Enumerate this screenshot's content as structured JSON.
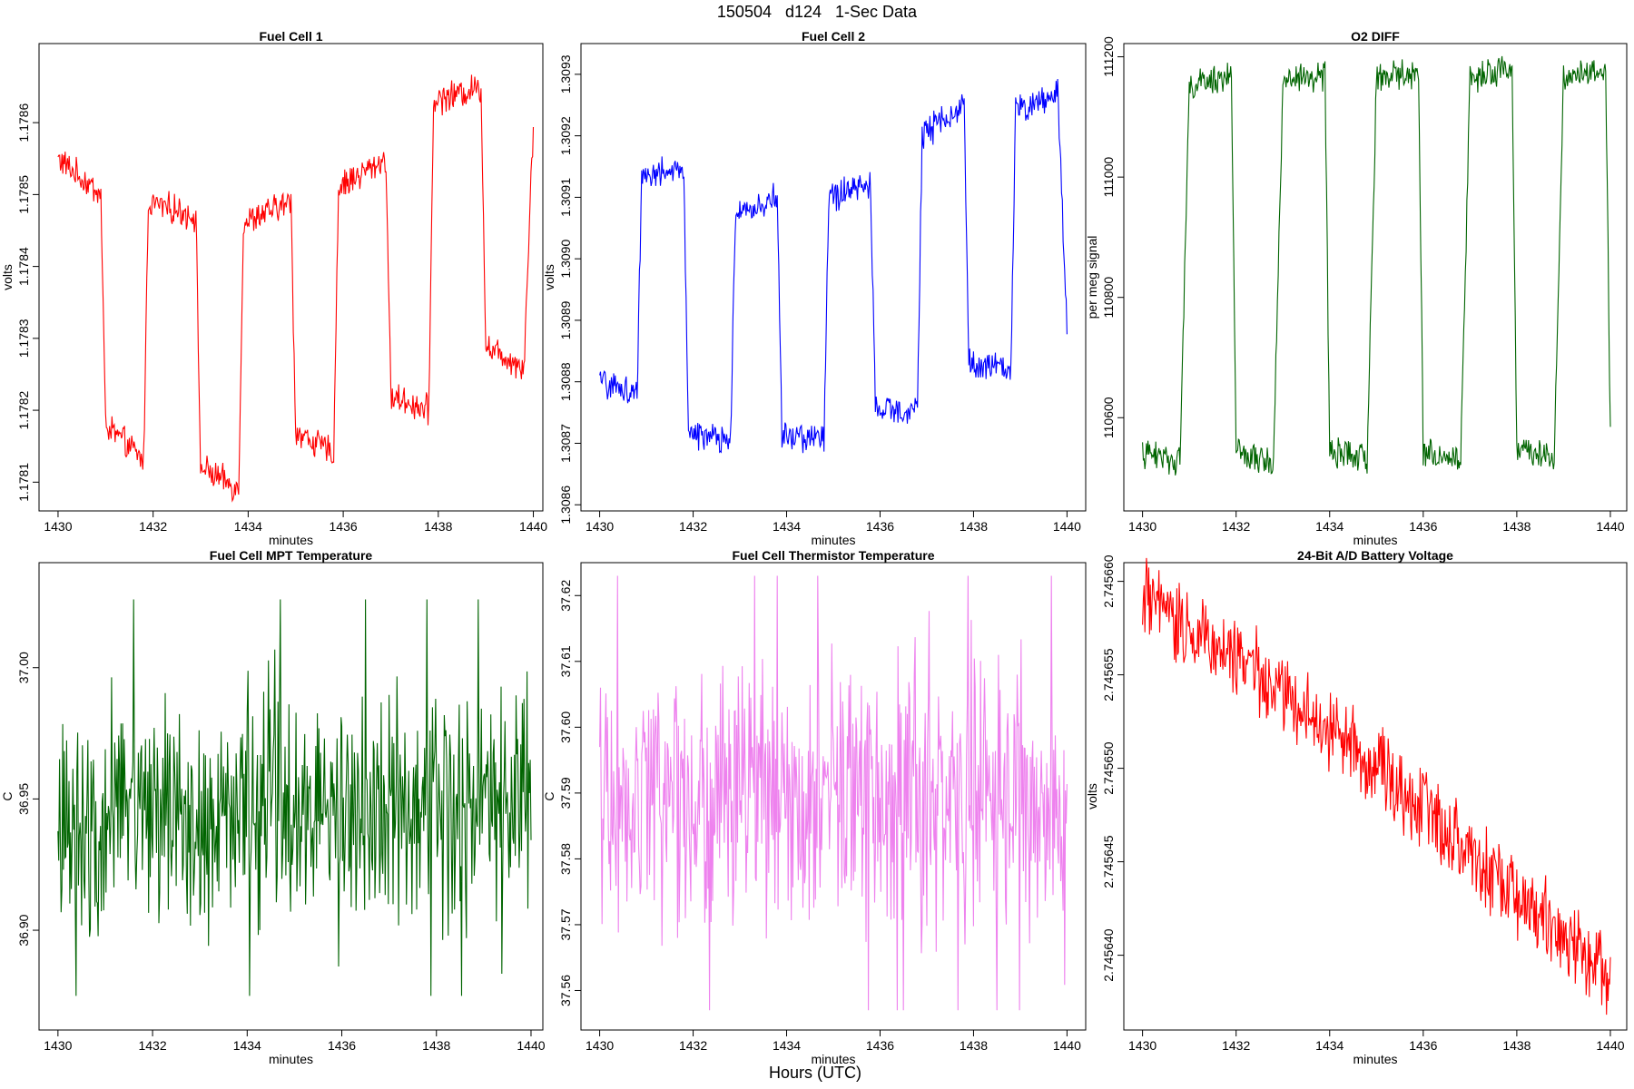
{
  "figure": {
    "title": "150504   d124   1-Sec Data",
    "xtitle": "Hours (UTC)"
  },
  "colors": {
    "red": "#ff0000",
    "blue": "#0000ff",
    "green": "#006400",
    "violet": "#ee82ee"
  },
  "chart_data": [
    {
      "type": "line",
      "title": "Fuel Cell 1",
      "xlabel": "minutes",
      "ylabel": "volts",
      "color": "red",
      "xlim": [
        1429.6,
        1440.2
      ],
      "ylim": [
        1.17806,
        1.17871
      ],
      "xticks": [
        1430,
        1432,
        1434,
        1436,
        1438,
        1440
      ],
      "yticks": [
        1.1781,
        1.1782,
        1.1783,
        1.1784,
        1.1785,
        1.1786
      ],
      "ytick_labels": [
        "1.1781",
        "1.1782",
        "1.1783",
        "1.1784",
        "1.1785",
        "1.1786"
      ],
      "series": [
        {
          "name": "Fuel Cell 1",
          "x": [
            1430,
            1430.9,
            1431.0,
            1431.8,
            1431.9,
            1432.9,
            1433.0,
            1433.8,
            1433.9,
            1434.9,
            1435.0,
            1435.8,
            1435.9,
            1436.9,
            1437.0,
            1437.8,
            1437.9,
            1438.9,
            1439.0,
            1439.8,
            1440.0
          ],
          "y": [
            1.17855,
            1.1785,
            1.17818,
            1.17813,
            1.17849,
            1.17847,
            1.17812,
            1.17809,
            1.17846,
            1.17849,
            1.17817,
            1.17814,
            1.17851,
            1.17855,
            1.17822,
            1.1782,
            1.17863,
            1.17865,
            1.17829,
            1.17826,
            1.1786
          ]
        }
      ]
    },
    {
      "type": "line",
      "title": "Fuel Cell 2",
      "xlabel": "minutes",
      "ylabel": "volts",
      "color": "blue",
      "xlim": [
        1429.6,
        1440.4
      ],
      "ylim": [
        1.30859,
        1.30935
      ],
      "xticks": [
        1430,
        1432,
        1434,
        1436,
        1438,
        1440
      ],
      "yticks": [
        1.3086,
        1.3087,
        1.3088,
        1.3089,
        1.309,
        1.3091,
        1.3092,
        1.3093
      ],
      "ytick_labels": [
        "1.3086",
        "1.3087",
        "1.3088",
        "1.3089",
        "1.3090",
        "1.3091",
        "1.3092",
        "1.3093"
      ],
      "series": [
        {
          "name": "Fuel Cell 2",
          "x": [
            1430,
            1430.8,
            1430.9,
            1431.8,
            1431.9,
            1432.8,
            1432.9,
            1433.8,
            1433.9,
            1434.8,
            1434.9,
            1435.8,
            1435.9,
            1436.8,
            1436.9,
            1437.8,
            1437.9,
            1438.8,
            1438.9,
            1439.8,
            1440.0
          ],
          "y": [
            1.3088,
            1.30878,
            1.30914,
            1.30914,
            1.30872,
            1.3087,
            1.30907,
            1.3091,
            1.30871,
            1.30871,
            1.3091,
            1.30912,
            1.30875,
            1.30876,
            1.3092,
            1.30925,
            1.30883,
            1.30882,
            1.30924,
            1.30927,
            1.3089
          ]
        }
      ]
    },
    {
      "type": "line",
      "title": "O2 DIFF",
      "xlabel": "minutes",
      "ylabel": "per meg signal",
      "color": "green",
      "xlim": [
        1429.6,
        1440.35
      ],
      "ylim": [
        110445,
        111222
      ],
      "xticks": [
        1430,
        1432,
        1434,
        1436,
        1438,
        1440
      ],
      "yticks": [
        110600,
        110800,
        111000,
        111200
      ],
      "ytick_labels": [
        "110600",
        "110800",
        "111000",
        "111200"
      ],
      "series": [
        {
          "name": "O2 DIFF",
          "x": [
            1430,
            1430.8,
            1431.0,
            1431.9,
            1432.0,
            1432.8,
            1433.0,
            1433.9,
            1434.0,
            1434.8,
            1435.0,
            1435.9,
            1436.0,
            1436.8,
            1437.0,
            1437.9,
            1438.0,
            1438.8,
            1439.0,
            1439.9,
            1440.0
          ],
          "y": [
            110540,
            110530,
            111150,
            111170,
            110540,
            110525,
            111160,
            111170,
            110545,
            110530,
            111165,
            111175,
            110545,
            110530,
            111165,
            111180,
            110550,
            110535,
            111170,
            111180,
            110585
          ]
        }
      ]
    },
    {
      "type": "line",
      "title": "Fuel Cell MPT Temperature",
      "xlabel": "minutes",
      "ylabel": "C",
      "color": "green",
      "xlim": [
        1429.6,
        1440.25
      ],
      "ylim": [
        36.862,
        37.04
      ],
      "xticks": [
        1430,
        1432,
        1434,
        1436,
        1438,
        1440
      ],
      "yticks": [
        36.9,
        36.95,
        37.0
      ],
      "ytick_labels": [
        "36.90",
        "36.95",
        "37.00"
      ],
      "series": [
        {
          "name": "Fuel Cell MPT Temperature",
          "mean": 36.945,
          "range": [
            36.875,
            37.026
          ],
          "x": [
            1430,
            1440
          ]
        }
      ]
    },
    {
      "type": "line",
      "title": "Fuel Cell Thermistor Temperature",
      "xlabel": "minutes",
      "ylabel": "C",
      "color": "violet",
      "xlim": [
        1429.6,
        1440.4
      ],
      "ylim": [
        37.554,
        37.625
      ],
      "xticks": [
        1430,
        1432,
        1434,
        1436,
        1438,
        1440
      ],
      "yticks": [
        37.56,
        37.57,
        37.58,
        37.59,
        37.6,
        37.61,
        37.62
      ],
      "ytick_labels": [
        "37.56",
        "37.57",
        "37.58",
        "37.59",
        "37.60",
        "37.61",
        "37.62"
      ],
      "series": [
        {
          "name": "Fuel Cell Thermistor Temperature",
          "mean": 37.589,
          "range": [
            37.557,
            37.623
          ],
          "x": [
            1430,
            1440
          ]
        }
      ]
    },
    {
      "type": "line",
      "title": "24-Bit A/D Battery Voltage",
      "xlabel": "minutes",
      "ylabel": "volts",
      "color": "red",
      "xlim": [
        1429.6,
        1440.35
      ],
      "ylim": [
        2.745636,
        2.745661
      ],
      "xticks": [
        1430,
        1432,
        1434,
        1436,
        1438,
        1440
      ],
      "yticks": [
        2.74564,
        2.745645,
        2.74565,
        2.745655,
        2.74566
      ],
      "ytick_labels": [
        "2.745640",
        "2.745645",
        "2.745650",
        "2.745655",
        "2.745660"
      ],
      "series": [
        {
          "name": "24-Bit A/D Battery Voltage",
          "x": [
            1430,
            1432,
            1434,
            1436,
            1438,
            1440
          ],
          "y": [
            2.745659,
            2.745656,
            2.745652,
            2.745648,
            2.745643,
            2.745639
          ]
        }
      ]
    }
  ]
}
